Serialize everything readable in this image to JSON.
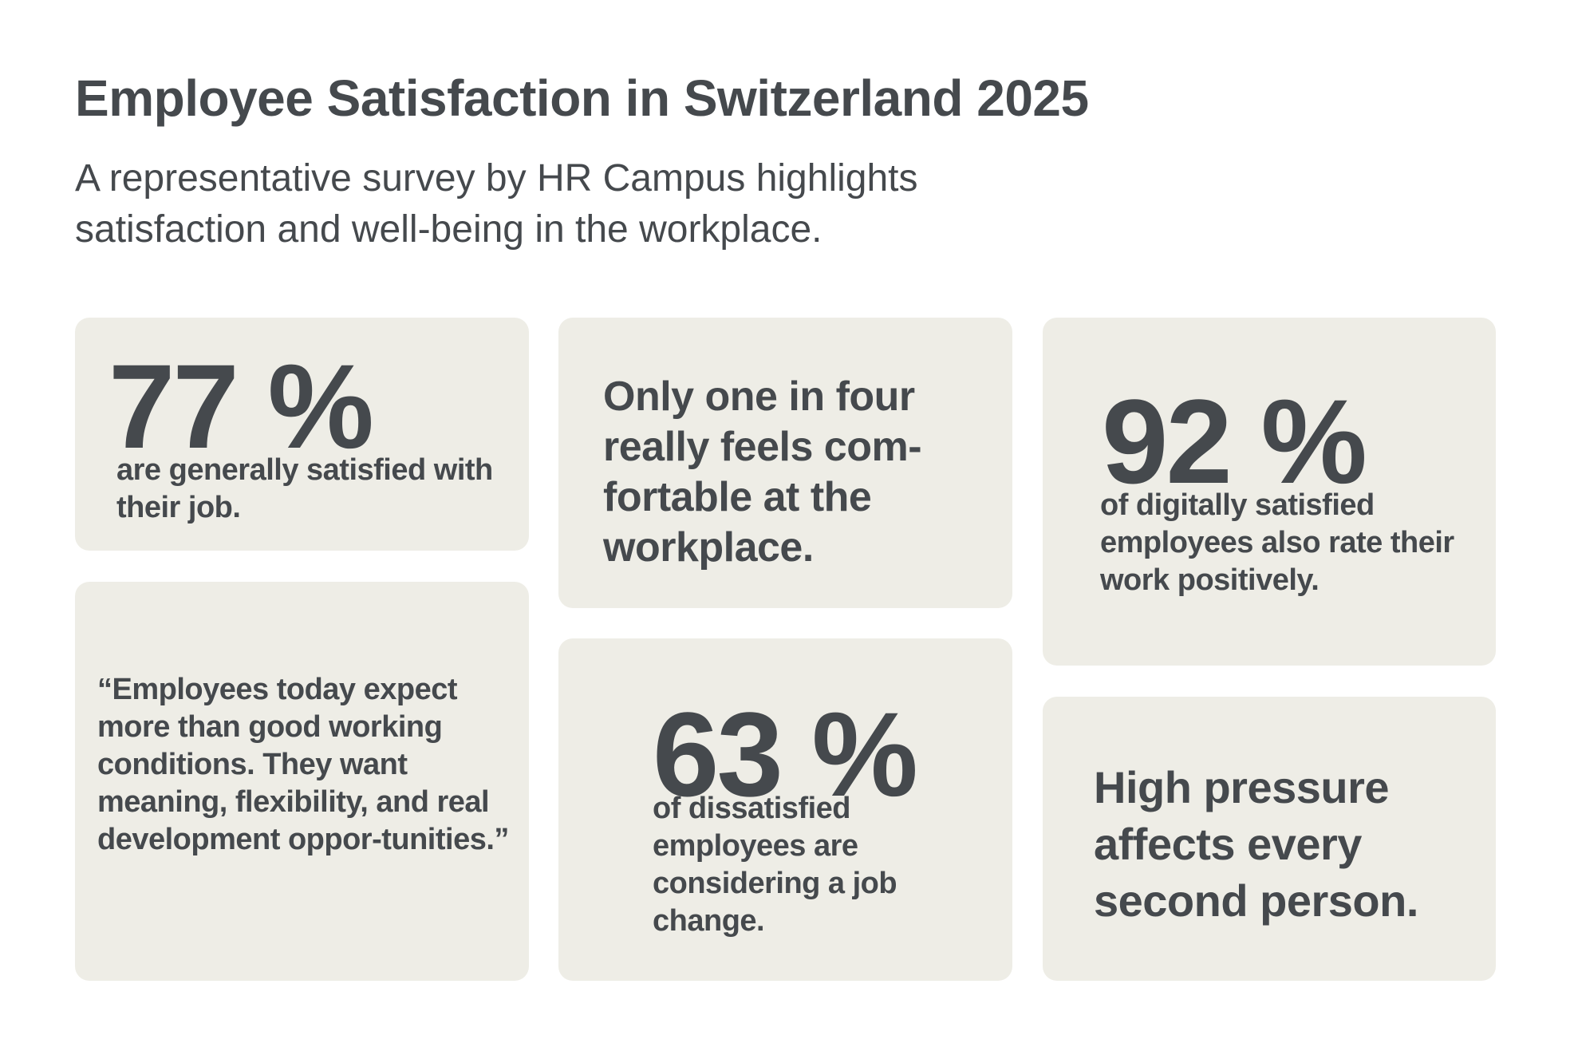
{
  "header": {
    "title": "Employee Satisfaction in Switzerland 2025",
    "subtitle": "A representative survey by HR Campus highlights satisfaction and well-being in the workplace."
  },
  "colors": {
    "text": "#45494d",
    "card_background": "#eeede6",
    "page_background": "#ffffff"
  },
  "cards": [
    {
      "value": "77 %",
      "text": "are generally satisfied with their job."
    },
    {
      "text": "Only one in four really feels com-fortable at the workplace."
    },
    {
      "value": "92 %",
      "text": "of digitally satisfied employees also rate their work positively."
    },
    {
      "text": "“Employees today expect more than good working conditions. They want meaning, flexibility, and real development oppor-tunities.”"
    },
    {
      "value": "63 %",
      "text": "of dissatisfied employees are considering a job change."
    },
    {
      "text": "High pressure affects every second person."
    }
  ]
}
